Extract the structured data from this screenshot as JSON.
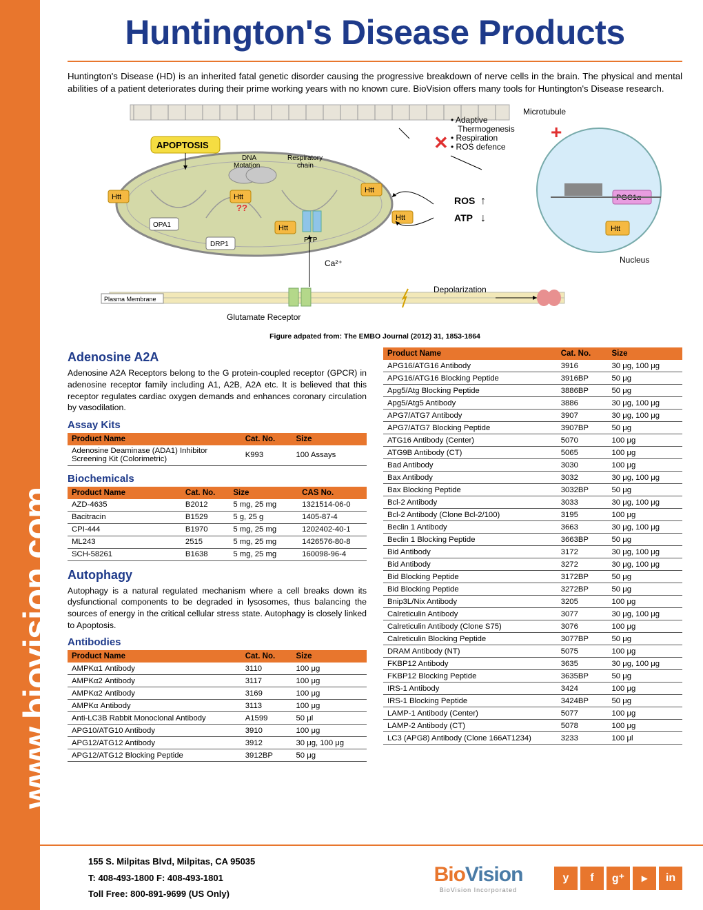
{
  "colors": {
    "accent": "#e8762d",
    "title": "#1e3a8a",
    "white": "#ffffff",
    "logo_blue": "#4a7ba6",
    "grey": "#888888"
  },
  "side_url": "www.biovision.com",
  "title": "Huntington's Disease Products",
  "intro": "Huntington's Disease (HD) is an inherited fatal genetic disorder causing the progressive breakdown of nerve cells in the brain. The physical and mental abilities of a patient deteriorates during their prime working years with no known cure. BioVision offers many tools for Huntington's Disease research.",
  "figure": {
    "caption": "Figure adpated from: The EMBO Journal (2012) 31, 1853-1864",
    "labels": {
      "microtubule": "Microtubule",
      "apoptosis": "APOPTOSIS",
      "dna_mot": "DNA\nMotation",
      "resp_chain": "Respiratory\nchain",
      "htt": "Htt",
      "opa1": "OPA1",
      "drp1": "DRP1",
      "ptp": "PTP",
      "bullets": "• Adaptive\n  Thermogenesis\n• Respiration\n• ROS defence",
      "pgc1a": "PGC1α",
      "nucleus": "Nucleus",
      "ros": "ROS",
      "atp": "ATP",
      "ca": "Ca²⁺",
      "plasma": "Plasma Membrane",
      "glutamate": "Glutamate Receptor",
      "depol": "Depolarization",
      "plus": "+",
      "cross": "✕",
      "qq": "??"
    }
  },
  "adenosine": {
    "heading": "Adenosine A2A",
    "text": "Adenosine A2A Receptors belong to the G protein-coupled receptor (GPCR) in adenosine receptor family including A1, A2B, A2A etc. It is believed that this receptor regulates cardiac oxygen demands and enhances coronary circulation by vasodilation."
  },
  "assay": {
    "heading": "Assay Kits",
    "cols": [
      "Product Name",
      "Cat. No.",
      "Size"
    ],
    "rows": [
      [
        "Adenosine Deaminase (ADA1) Inhibitor Screening Kit (Colorimetric)",
        "K993",
        "100 Assays"
      ]
    ]
  },
  "biochem": {
    "heading": "Biochemicals",
    "cols": [
      "Product Name",
      "Cat. No.",
      "Size",
      "CAS No."
    ],
    "rows": [
      [
        "AZD-4635",
        "B2012",
        "5 mg, 25 mg",
        "1321514-06-0"
      ],
      [
        "Bacitracin",
        "B1529",
        "5 g, 25 g",
        "1405-87-4"
      ],
      [
        "CPI-444",
        "B1970",
        "5 mg, 25 mg",
        "1202402-40-1"
      ],
      [
        "ML243",
        "2515",
        "5 mg, 25 mg",
        "1426576-80-8"
      ],
      [
        "SCH-58261",
        "B1638",
        "5 mg, 25 mg",
        "160098-96-4"
      ]
    ]
  },
  "autophagy": {
    "heading": "Autophagy",
    "text": "Autophagy is a natural regulated mechanism where a cell breaks down its dysfunctional components to be degraded in lysosomes, thus balancing the sources of energy in the critical cellular stress state. Autophagy is closely linked to Apoptosis."
  },
  "antibodies_left": {
    "heading": "Antibodies",
    "cols": [
      "Product Name",
      "Cat. No.",
      "Size"
    ],
    "rows": [
      [
        "AMPKα1 Antibody",
        "3110",
        "100 μg"
      ],
      [
        "AMPKα2 Antibody",
        "3117",
        "100 μg"
      ],
      [
        "AMPKα2 Antibody",
        "3169",
        "100 μg"
      ],
      [
        "AMPKα Antibody",
        "3113",
        "100 μg"
      ],
      [
        "Anti-LC3B Rabbit Monoclonal Antibody",
        "A1599",
        "50 μl"
      ],
      [
        "APG10/ATG10 Antibody",
        "3910",
        "100 μg"
      ],
      [
        "APG12/ATG12 Antibody",
        "3912",
        "30 μg, 100 μg"
      ],
      [
        "APG12/ATG12 Blocking Peptide",
        "3912BP",
        "50 μg"
      ]
    ]
  },
  "antibodies_right": {
    "cols": [
      "Product Name",
      "Cat. No.",
      "Size"
    ],
    "rows": [
      [
        "APG16/ATG16 Antibody",
        "3916",
        "30 μg, 100 μg"
      ],
      [
        "APG16/ATG16 Blocking Peptide",
        "3916BP",
        "50 μg"
      ],
      [
        "Apg5/Atg Blocking Peptide",
        "3886BP",
        "50 μg"
      ],
      [
        "Apg5/Atg5 Antibody",
        "3886",
        "30 μg, 100 μg"
      ],
      [
        "APG7/ATG7 Antibody",
        "3907",
        "30 μg, 100 μg"
      ],
      [
        "APG7/ATG7 Blocking Peptide",
        "3907BP",
        "50 μg"
      ],
      [
        "ATG16 Antibody (Center)",
        "5070",
        "100 μg"
      ],
      [
        "ATG9B Antibody (CT)",
        "5065",
        "100 μg"
      ],
      [
        "Bad Antibody",
        "3030",
        "100 μg"
      ],
      [
        "Bax Antibody",
        "3032",
        "30 μg, 100 μg"
      ],
      [
        "Bax Blocking Peptide",
        "3032BP",
        "50 μg"
      ],
      [
        "Bcl-2 Antibody",
        "3033",
        "30 μg, 100 μg"
      ],
      [
        "Bcl-2 Antibody (Clone Bcl-2/100)",
        "3195",
        "100 μg"
      ],
      [
        "Beclin 1 Antibody",
        "3663",
        "30 μg, 100 μg"
      ],
      [
        "Beclin 1 Blocking Peptide",
        "3663BP",
        "50 μg"
      ],
      [
        "Bid Antibody",
        "3172",
        "30 μg, 100 μg"
      ],
      [
        "Bid Antibody",
        "3272",
        "30 μg, 100 μg"
      ],
      [
        "Bid Blocking Peptide",
        "3172BP",
        "50 μg"
      ],
      [
        "Bid Blocking Peptide",
        "3272BP",
        "50 μg"
      ],
      [
        "Bnip3L/Nix Antibody",
        "3205",
        "100 μg"
      ],
      [
        "Calreticulin Antibody",
        "3077",
        "30 μg, 100 μg"
      ],
      [
        "Calreticulin Antibody (Clone S75)",
        "3076",
        "100 μg"
      ],
      [
        "Calreticulin Blocking Peptide",
        "3077BP",
        "50 μg"
      ],
      [
        "DRAM Antibody (NT)",
        "5075",
        "100 μg"
      ],
      [
        "FKBP12 Antibody",
        "3635",
        "30 μg, 100 μg"
      ],
      [
        "FKBP12 Blocking Peptide",
        "3635BP",
        "50 μg"
      ],
      [
        "IRS-1 Antibody",
        "3424",
        "100 μg"
      ],
      [
        "IRS-1 Blocking Peptide",
        "3424BP",
        "50 μg"
      ],
      [
        "LAMP-1 Antibody (Center)",
        "5077",
        "100 μg"
      ],
      [
        "LAMP-2 Antibody (CT)",
        "5078",
        "100 μg"
      ],
      [
        "LC3 (APG8) Antibody (Clone 166AT1234)",
        "3233",
        "100 μl"
      ]
    ]
  },
  "footer": {
    "address": "155 S. Milpitas Blvd, Milpitas, CA 95035",
    "phone": "T: 408-493-1800 F: 408-493-1801",
    "tollfree": "Toll Free: 800-891-9699 (US Only)",
    "logo_bio": "Bio",
    "logo_vision": "Vision",
    "logo_sub": "BioVision Incorporated",
    "social": [
      "y",
      "f",
      "g⁺",
      "▸",
      "in"
    ]
  }
}
